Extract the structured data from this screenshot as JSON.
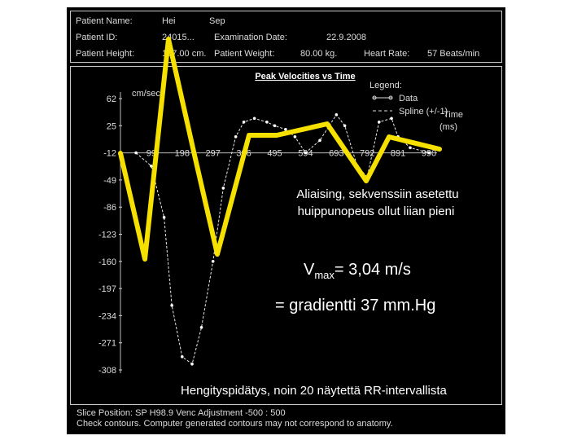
{
  "header": {
    "patient_name_label": "Patient Name:",
    "patient_name_value": "Hei",
    "patient_name_value2": "Sep",
    "patient_id_label": "Patient ID:",
    "patient_id_value": "24015...",
    "exam_date_label": "Examination Date:",
    "exam_date_value": "22.9.2008",
    "height_label": "Patient Height:",
    "height_value": "167.00 cm.",
    "weight_label": "Patient Weight:",
    "weight_value": "80.00 kg.",
    "heart_rate_label": "Heart Rate:",
    "heart_rate_value": "57 Beats/min"
  },
  "chart": {
    "title": "Peak Velocities vs Time",
    "ylabel": "cm/sec",
    "xlabel_line1": "Time",
    "xlabel_line2": "(ms)",
    "legend_title": "Legend:",
    "legend_data": "Data",
    "legend_spline": "Spline (+/-1)"
  },
  "chart_data": {
    "type": "line",
    "title": "Peak Velocities vs Time",
    "ylabel": "cm/sec",
    "xlabel": "Time (ms)",
    "y_ticks": [
      62,
      25,
      -12,
      -49,
      -86,
      -123,
      -160,
      -197,
      -234,
      -271,
      -308
    ],
    "x_ticks": [
      99,
      198,
      297,
      396,
      495,
      594,
      693,
      792,
      891,
      990
    ],
    "series": [
      {
        "name": "Data",
        "x": [
          50,
          99,
          140,
          165,
          198,
          230,
          260,
          297,
          330,
          370,
          396,
          430,
          470,
          495,
          530,
          560,
          594,
          640,
          693,
          720,
          760,
          792,
          830,
          870,
          891,
          930,
          990
        ],
        "y": [
          -12,
          -30,
          -100,
          -220,
          -290,
          -300,
          -250,
          -160,
          -60,
          10,
          30,
          35,
          30,
          25,
          20,
          10,
          -12,
          5,
          40,
          25,
          -30,
          -45,
          30,
          35,
          10,
          -5,
          -12
        ]
      }
    ]
  },
  "annotation": {
    "aliasing_line1": "Aliaising, sekvenssiin asetettu",
    "aliasing_line2": "huippunopeus ollut liian pieni",
    "vmax_prefix": "V",
    "vmax_sub": "max",
    "vmax_rest": "= 3,04 m/s",
    "gradient": "= gradientti 37 mm.Hg",
    "breath_hold": "Hengityspidätys, noin 20 näytettä RR-intervallista",
    "overlay_color": "#f5e000"
  },
  "footer": {
    "line1": "Slice Position: SP  H98.9     Venc Adjustment -500 : 500",
    "line2": "Check contours. Computer generated contours may not correspond to anatomy."
  }
}
